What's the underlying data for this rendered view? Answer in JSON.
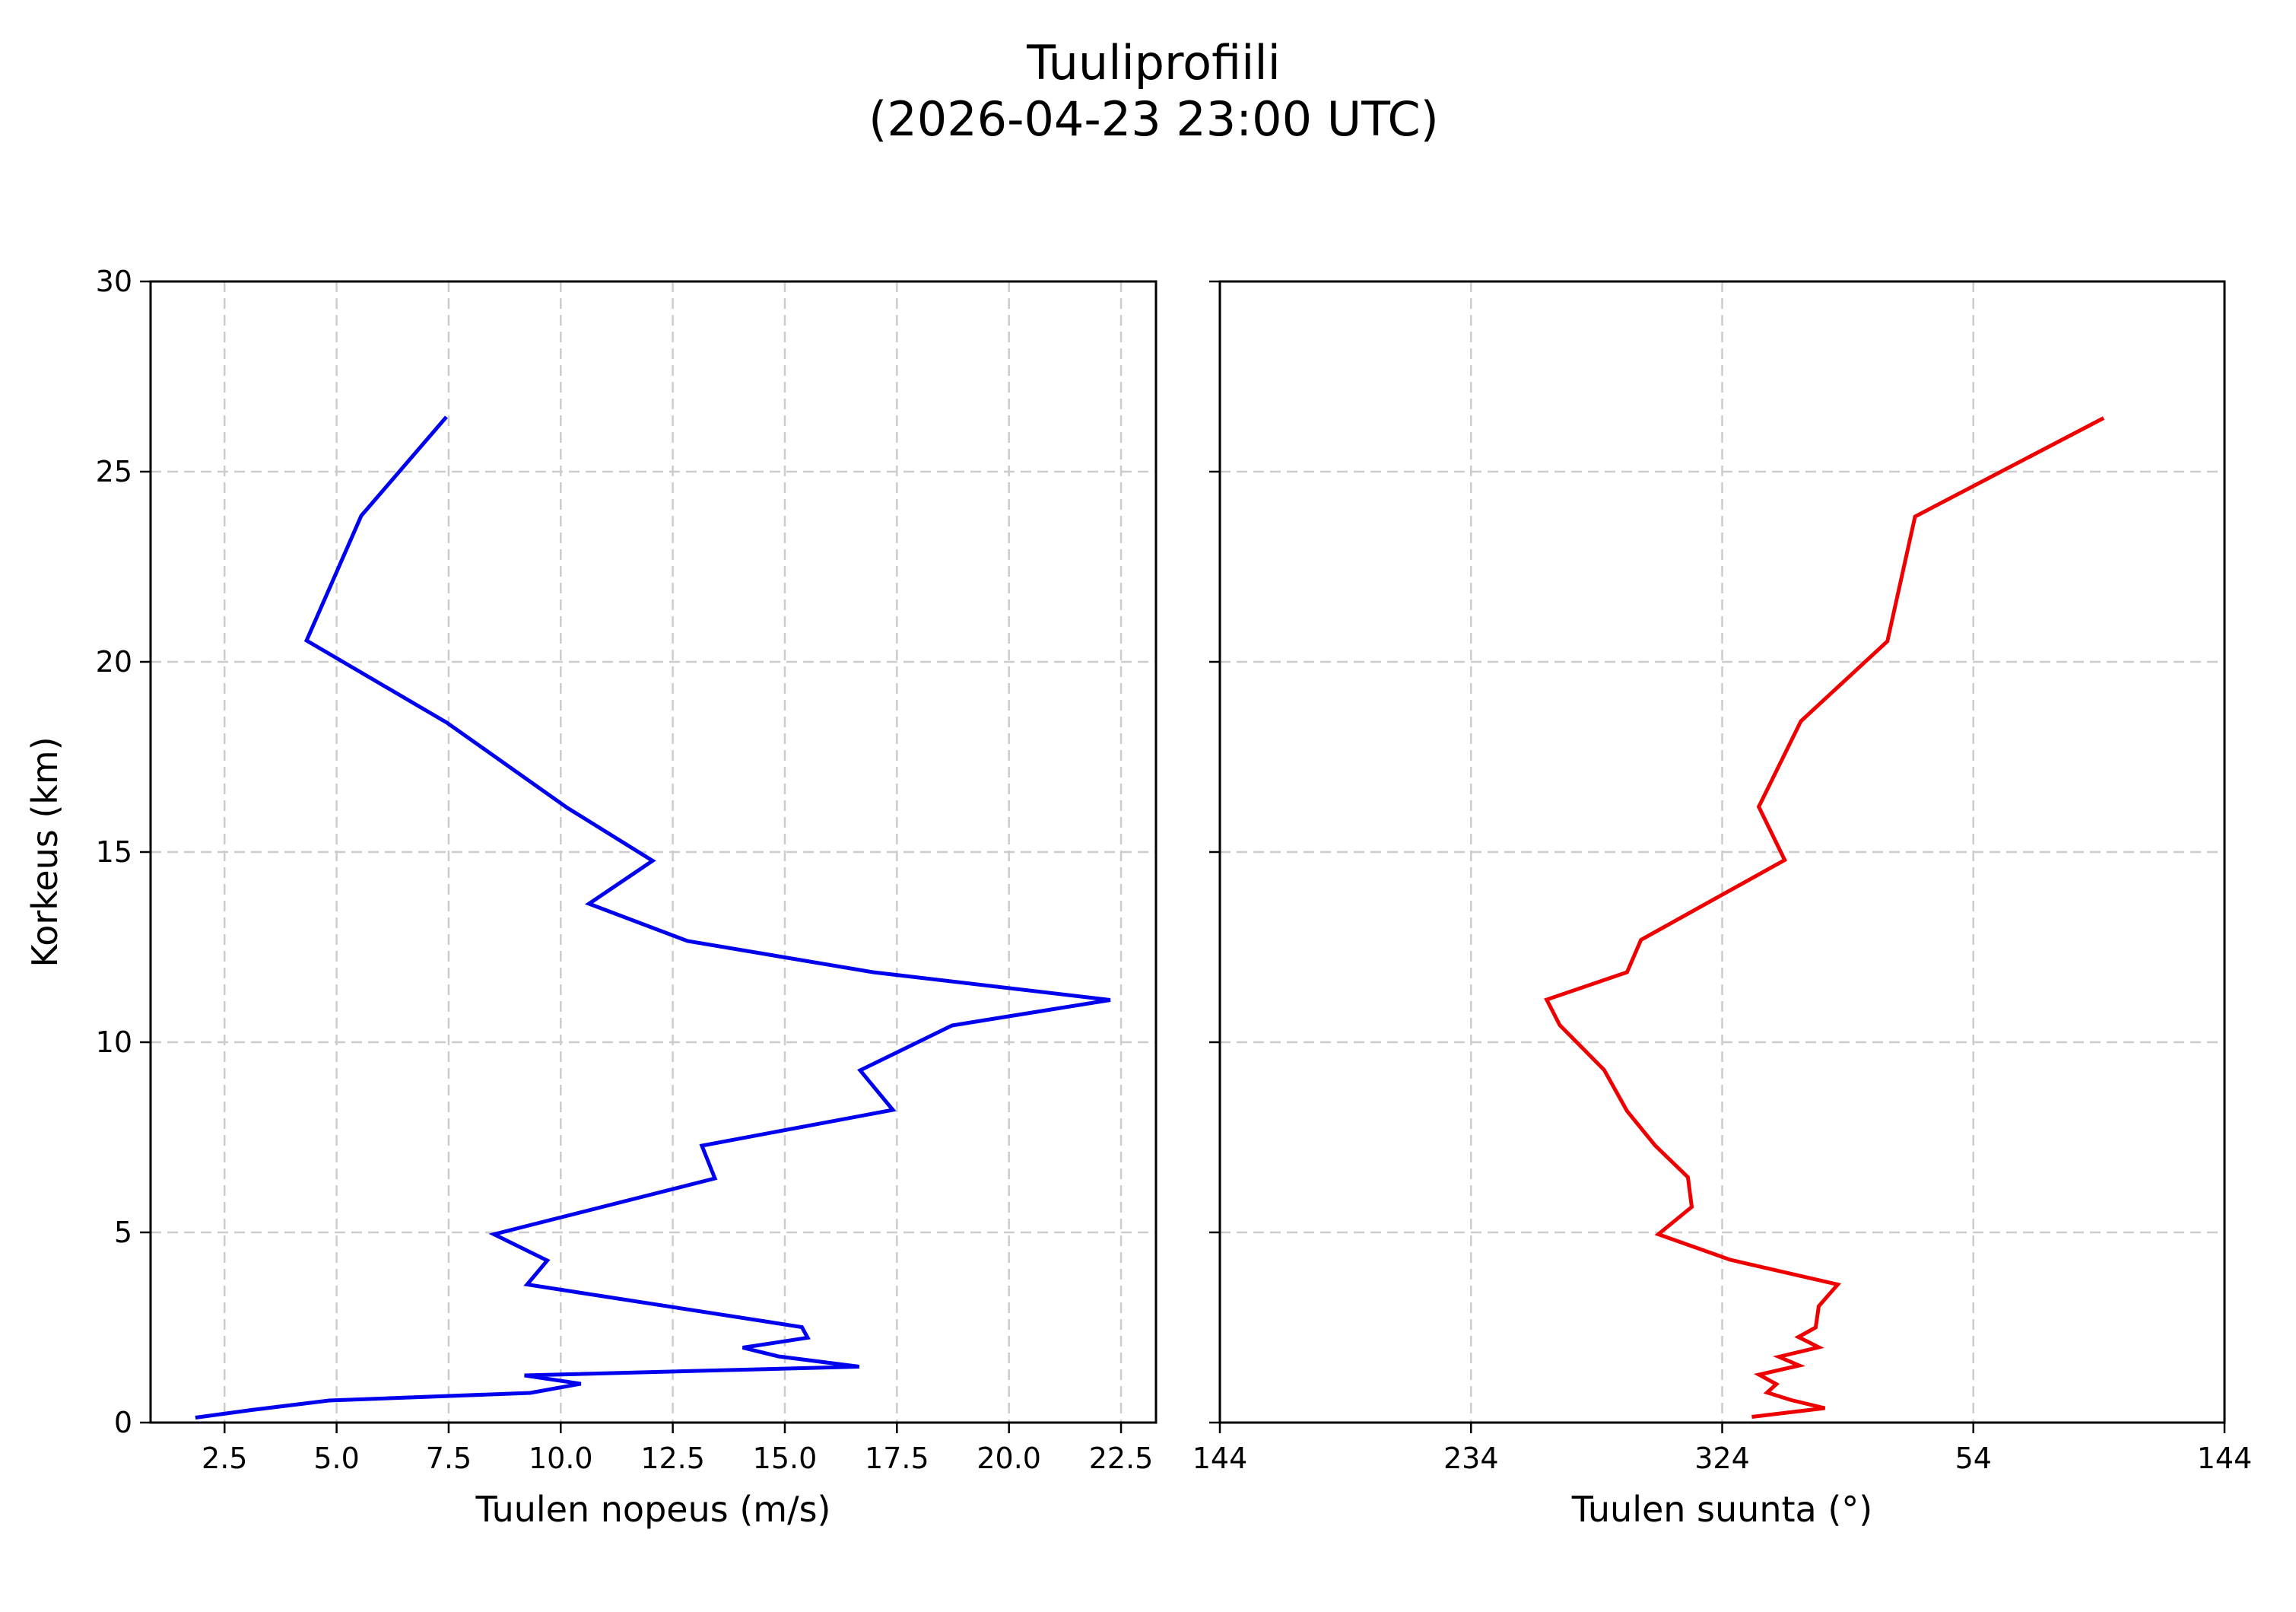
{
  "figure": {
    "title_line1": "Tuuliprofiili",
    "title_line2": "(2026-04-23 23:00 UTC)"
  },
  "chart_data": [
    {
      "type": "line",
      "title": "Tuulen nopeus",
      "xlabel": "Tuulen nopeus (m/s)",
      "ylabel": "Korkeus (km)",
      "xlim": [
        0.85,
        23.28
      ],
      "ylim": [
        0,
        30
      ],
      "xticks": [
        2.5,
        5.0,
        7.5,
        10.0,
        12.5,
        15.0,
        17.5,
        20.0,
        22.5
      ],
      "xtick_labels": [
        "2.5",
        "5.0",
        "7.5",
        "10.0",
        "12.5",
        "15.0",
        "17.5",
        "20.0",
        "22.5"
      ],
      "yticks": [
        0,
        5,
        10,
        15,
        20,
        25,
        30
      ],
      "ytick_labels": [
        "0",
        "5",
        "10",
        "15",
        "20",
        "25",
        "30"
      ],
      "grid": true,
      "series": [
        {
          "name": "Tuulen nopeus",
          "color": "#0000ee",
          "x": [
            1.85,
            3.1,
            4.83,
            9.32,
            10.45,
            9.19,
            16.66,
            14.86,
            14.06,
            15.51,
            15.38,
            9.25,
            9.7,
            8.51,
            13.44,
            13.15,
            17.41,
            16.68,
            18.73,
            22.26,
            16.97,
            12.83,
            10.63,
            12.05,
            10.15,
            7.46,
            4.33,
            5.55,
            7.45
          ],
          "y": [
            0.13,
            0.33,
            0.58,
            0.78,
            1.02,
            1.24,
            1.47,
            1.74,
            1.97,
            2.23,
            2.51,
            3.63,
            4.26,
            4.95,
            6.42,
            7.28,
            8.22,
            9.26,
            10.44,
            11.11,
            11.84,
            12.66,
            13.64,
            14.77,
            16.16,
            18.4,
            20.56,
            23.84,
            26.44
          ]
        }
      ]
    },
    {
      "type": "line",
      "title": "Tuulen suunta",
      "xlabel": "Tuulen suunta (°)",
      "ylabel": "",
      "xlim": [
        144,
        504
      ],
      "ylim": [
        0,
        30
      ],
      "xticks": [
        144,
        234,
        324,
        414,
        504
      ],
      "xtick_labels": [
        "144",
        "234",
        "324",
        "54",
        "144"
      ],
      "yticks": [
        0,
        5,
        10,
        15,
        20,
        25,
        30
      ],
      "ytick_labels": [],
      "grid": true,
      "series": [
        {
          "name": "Tuulen suunta",
          "color": "#ee0000",
          "x": [
            334.6,
            0.8,
            348.8,
            340.1,
            343.4,
            337.2,
            351.6,
            344.3,
            358.6,
            351.3,
            357.5,
            358.6,
            5.4,
            326.9,
            301.1,
            313.1,
            311.7,
            299.9,
            289.9,
            281.7,
            265.8,
            261.1,
            289.9,
            294.9,
            346.4,
            337.1,
            352.2,
            23.2,
            33.1,
            100.7
          ],
          "y": [
            0.15,
            0.38,
            0.59,
            0.79,
            1.01,
            1.26,
            1.5,
            1.73,
            1.98,
            2.25,
            2.5,
            3.06,
            3.63,
            4.28,
            4.95,
            5.67,
            6.45,
            7.29,
            8.19,
            9.27,
            10.45,
            11.12,
            11.84,
            12.69,
            14.79,
            16.19,
            18.44,
            20.54,
            23.82,
            26.41
          ]
        }
      ]
    }
  ]
}
